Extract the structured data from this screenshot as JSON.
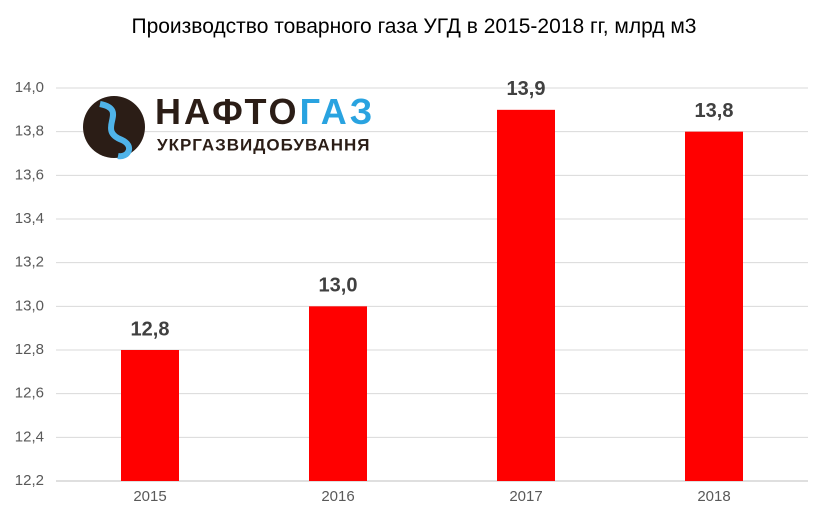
{
  "chart_data": {
    "type": "bar",
    "title": "Производство товарного газа УГД в 2015-2018 гг, млрд м3",
    "logo": {
      "name_dark": "НАФТО",
      "name_blue": "ГАЗ",
      "subtitle": "УКРГАЗВИДОБУВАННЯ"
    },
    "categories": [
      "2015",
      "2016",
      "2017",
      "2018"
    ],
    "values": [
      12.8,
      13.0,
      13.9,
      13.8
    ],
    "value_labels": [
      "12,8",
      "13,0",
      "13,9",
      "13,8"
    ],
    "color": "#ff0000",
    "ylim": [
      12.2,
      14.0
    ],
    "yticks": [
      {
        "value": 12.2,
        "label": "12,2"
      },
      {
        "value": 12.4,
        "label": "12,4"
      },
      {
        "value": 12.6,
        "label": "12,6"
      },
      {
        "value": 12.8,
        "label": "12,8"
      },
      {
        "value": 13.0,
        "label": "13,0"
      },
      {
        "value": 13.2,
        "label": "13,2"
      },
      {
        "value": 13.4,
        "label": "13,4"
      },
      {
        "value": 13.6,
        "label": "13,6"
      },
      {
        "value": 13.8,
        "label": "13,8"
      },
      {
        "value": 14.0,
        "label": "14,0"
      }
    ],
    "grid": true
  }
}
